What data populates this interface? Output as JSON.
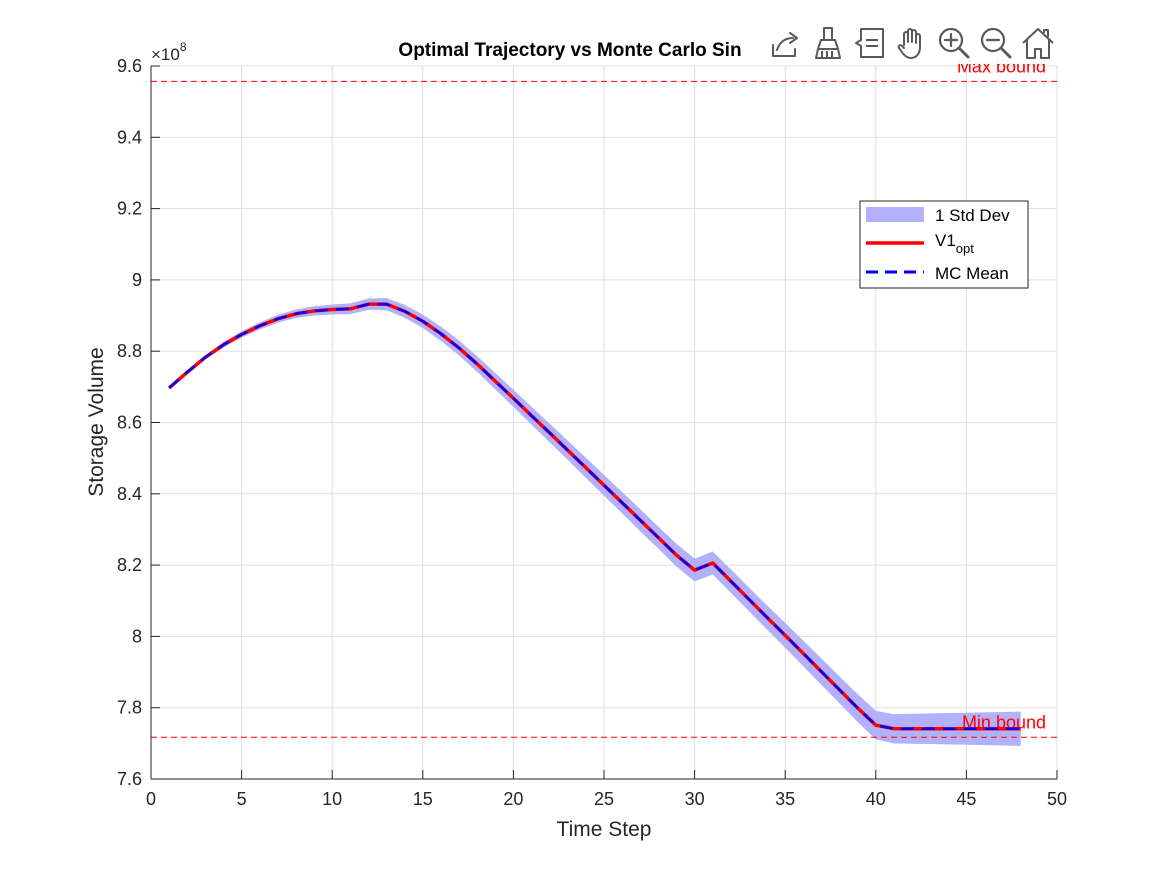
{
  "toolbar": {
    "buttons": [
      {
        "name": "export-icon",
        "tooltip": "Export"
      },
      {
        "name": "brush-icon",
        "tooltip": "Brush Data"
      },
      {
        "name": "data-tips-icon",
        "tooltip": "Data Tips"
      },
      {
        "name": "pan-icon",
        "tooltip": "Pan"
      },
      {
        "name": "zoom-in-icon",
        "tooltip": "Zoom In"
      },
      {
        "name": "zoom-out-icon",
        "tooltip": "Zoom Out"
      },
      {
        "name": "home-icon",
        "tooltip": "Restore View"
      }
    ]
  },
  "colors": {
    "axis": "#262626",
    "grid": "#dfdfdf",
    "band": "#b2b2fc",
    "opt": "#ff0000",
    "mean": "#0000ff",
    "bound": "#ff0000",
    "bound_text": "#ff0000"
  },
  "chart_data": {
    "type": "line",
    "title": "Optimal Trajectory vs Monte Carlo Sin",
    "xlabel": "Time Step",
    "ylabel": "Storage Volume",
    "exponent_label": "×10",
    "exponent_power": "8",
    "xlim": [
      0,
      50
    ],
    "ylim": [
      7.6,
      9.6
    ],
    "xticks": [
      0,
      5,
      10,
      15,
      20,
      25,
      30,
      35,
      40,
      45,
      50
    ],
    "xtick_labels": [
      "0",
      "5",
      "10",
      "15",
      "20",
      "25",
      "30",
      "35",
      "40",
      "45",
      "50"
    ],
    "yticks": [
      7.6,
      7.8,
      8.0,
      8.2,
      8.4,
      8.6,
      8.8,
      9.0,
      9.2,
      9.4,
      9.6
    ],
    "ytick_labels": [
      "7.6",
      "7.8",
      "8",
      "8.2",
      "8.4",
      "8.6",
      "8.8",
      "9",
      "9.2",
      "9.4",
      "9.6"
    ],
    "grid": true,
    "legend": {
      "location": "upper-right",
      "entries": [
        {
          "label": "1 Std Dev",
          "sub": ""
        },
        {
          "label": "V1",
          "sub": "opt"
        },
        {
          "label": "MC Mean",
          "sub": ""
        }
      ]
    },
    "bounds": [
      {
        "name": "Max bound",
        "value": 9.557
      },
      {
        "name": "Min bound",
        "value": 7.717
      }
    ],
    "x": [
      1,
      2,
      3,
      4,
      5,
      6,
      7,
      8,
      9,
      10,
      11,
      12,
      13,
      14,
      15,
      16,
      17,
      18,
      19,
      20,
      21,
      22,
      23,
      24,
      25,
      26,
      27,
      28,
      29,
      30,
      31,
      32,
      33,
      34,
      35,
      36,
      37,
      38,
      39,
      40,
      41,
      42,
      43,
      44,
      45,
      46,
      47,
      48
    ],
    "series": [
      {
        "name": "V1opt",
        "values": [
          8.697,
          8.741,
          8.783,
          8.818,
          8.847,
          8.871,
          8.891,
          8.905,
          8.913,
          8.917,
          8.919,
          8.932,
          8.932,
          8.912,
          8.884,
          8.849,
          8.809,
          8.764,
          8.716,
          8.668,
          8.619,
          8.571,
          8.522,
          8.473,
          8.424,
          8.375,
          8.326,
          8.277,
          8.228,
          8.186,
          8.206,
          8.155,
          8.104,
          8.053,
          8.003,
          7.952,
          7.901,
          7.85,
          7.799,
          7.751,
          7.741,
          7.741,
          7.741,
          7.741,
          7.741,
          7.741,
          7.741,
          7.741
        ]
      },
      {
        "name": "MC Mean",
        "values": [
          8.697,
          8.741,
          8.783,
          8.818,
          8.847,
          8.871,
          8.891,
          8.905,
          8.913,
          8.917,
          8.919,
          8.932,
          8.932,
          8.912,
          8.884,
          8.849,
          8.809,
          8.764,
          8.716,
          8.668,
          8.619,
          8.571,
          8.522,
          8.473,
          8.424,
          8.375,
          8.326,
          8.277,
          8.228,
          8.186,
          8.206,
          8.155,
          8.104,
          8.053,
          8.003,
          7.952,
          7.901,
          7.85,
          7.799,
          7.751,
          7.741,
          7.741,
          7.741,
          7.741,
          7.741,
          7.741,
          7.741,
          7.741
        ]
      }
    ],
    "std_dev": [
      0.002,
      0.004,
      0.006,
      0.008,
      0.009,
      0.01,
      0.011,
      0.012,
      0.013,
      0.014,
      0.015,
      0.016,
      0.017,
      0.018,
      0.019,
      0.02,
      0.021,
      0.022,
      0.023,
      0.024,
      0.025,
      0.026,
      0.027,
      0.028,
      0.029,
      0.03,
      0.031,
      0.031,
      0.032,
      0.032,
      0.032,
      0.033,
      0.033,
      0.034,
      0.035,
      0.036,
      0.037,
      0.038,
      0.039,
      0.04,
      0.041,
      0.042,
      0.043,
      0.044,
      0.045,
      0.046,
      0.047,
      0.048
    ]
  }
}
